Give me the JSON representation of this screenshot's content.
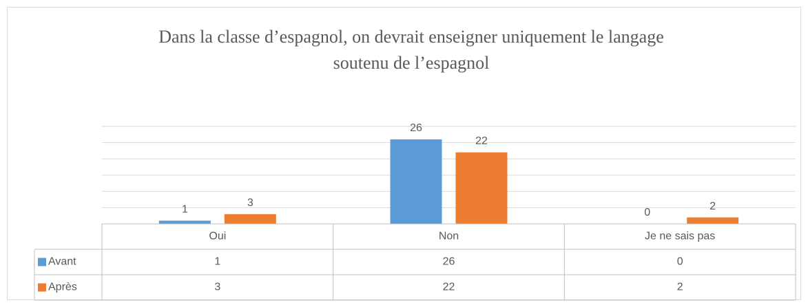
{
  "chart_data": {
    "type": "bar",
    "title": [
      "Dans la classe d’espagnol, on devrait enseigner uniquement le langage",
      "soutenu de l’espagnol"
    ],
    "categories": [
      "Oui",
      "Non",
      "Je ne sais pas"
    ],
    "series": [
      {
        "name": "Avant",
        "color": "#5b9bd5",
        "values": [
          1,
          26,
          0
        ]
      },
      {
        "name": "Après",
        "color": "#ed7d31",
        "values": [
          3,
          22,
          2
        ]
      }
    ],
    "ylim": [
      0,
      30
    ],
    "yticks": [
      0,
      5,
      10,
      15,
      20,
      25,
      30
    ],
    "grid": true,
    "data_table": true
  }
}
